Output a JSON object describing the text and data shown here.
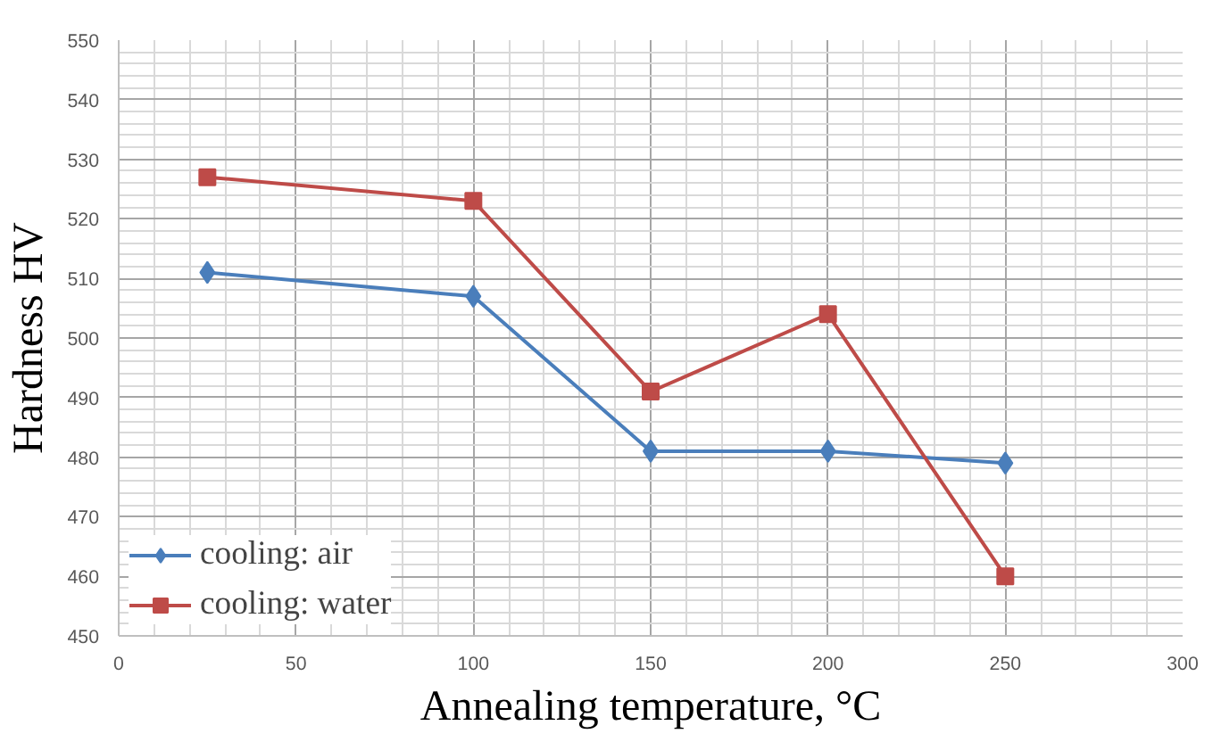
{
  "chart_data": {
    "type": "line",
    "xlabel": "Annealing temperature, °C",
    "ylabel": "Hardness HV",
    "x": [
      25,
      100,
      150,
      200,
      250
    ],
    "series": [
      {
        "name": "cooling: air",
        "color": "#4a7ebb",
        "values": [
          511,
          507,
          481,
          481,
          479
        ],
        "marker": "diamond"
      },
      {
        "name": "cooling: water",
        "color": "#be4b48",
        "values": [
          527,
          523,
          491,
          504,
          460
        ],
        "marker": "square"
      }
    ],
    "xlim": [
      0,
      300
    ],
    "xticks": [
      0,
      50,
      100,
      150,
      200,
      250,
      300
    ],
    "ylim": [
      450,
      550
    ],
    "yticks": [
      450,
      460,
      470,
      480,
      490,
      500,
      510,
      520,
      530,
      540,
      550
    ],
    "grid": true,
    "legend": "bottom left"
  }
}
